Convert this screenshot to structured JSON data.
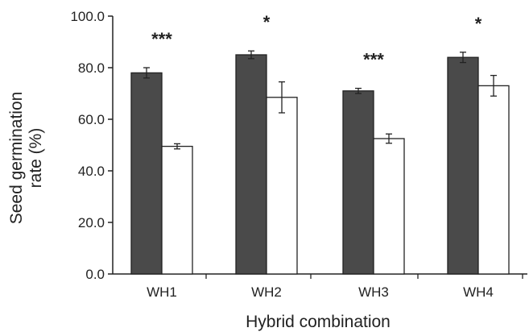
{
  "chart_data": {
    "type": "bar",
    "title": "",
    "xlabel": "Hybrid combination",
    "ylabel_lines": [
      "Seed germination",
      "rate (%)"
    ],
    "categories": [
      "WH1",
      "WH2",
      "WH3",
      "WH4"
    ],
    "ylim": [
      0,
      100
    ],
    "yticks": [
      "0.0",
      "20.0",
      "40.0",
      "60.0",
      "80.0",
      "100.0"
    ],
    "grid": false,
    "legend": "none",
    "series": [
      {
        "values": [
          78.0,
          85.0,
          71.0,
          84.0
        ],
        "errors": [
          2.0,
          1.5,
          1.0,
          2.0
        ],
        "color": "#4a4a4a"
      },
      {
        "values": [
          49.5,
          68.5,
          52.5,
          73.0
        ],
        "errors": [
          1.0,
          6.0,
          1.8,
          4.0
        ],
        "color": "#ffffff"
      }
    ],
    "significance": [
      "***",
      "*",
      "***",
      "*"
    ]
  }
}
